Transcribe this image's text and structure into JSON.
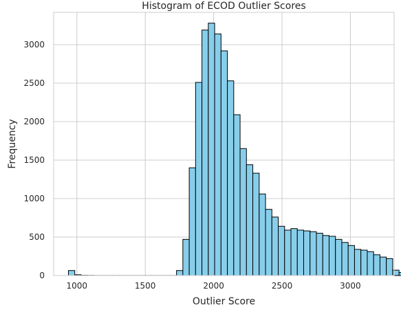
{
  "chart_data": {
    "type": "bar",
    "title": "Histogram of ECOD Outlier Scores",
    "xlabel": "Outlier Score",
    "ylabel": "Frequency",
    "xlim": [
      830,
      3320
    ],
    "ylim": [
      0,
      3420
    ],
    "xticks": [
      1000,
      1500,
      2000,
      2500,
      3000
    ],
    "yticks": [
      0,
      500,
      1000,
      1500,
      2000,
      2500,
      3000
    ],
    "grid": true,
    "bar_color": "#87CEEB",
    "edge_color": "#000000",
    "bin_start": 938,
    "bin_width": 46.5,
    "values": [
      65,
      10,
      3,
      2,
      1,
      1,
      1,
      1,
      1,
      1,
      1,
      1,
      1,
      1,
      1,
      1,
      1,
      65,
      470,
      1400,
      2510,
      3190,
      3280,
      3140,
      2920,
      2530,
      2090,
      1650,
      1440,
      1330,
      1060,
      860,
      760,
      640,
      590,
      610,
      590,
      580,
      570,
      550,
      520,
      510,
      470,
      430,
      390,
      340,
      330,
      310,
      270,
      240,
      220,
      70,
      40,
      20
    ]
  }
}
